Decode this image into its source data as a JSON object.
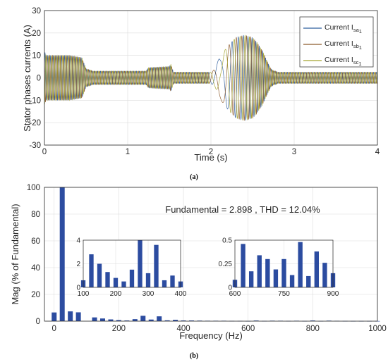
{
  "chart_data": [
    {
      "type": "line",
      "caption": "(a)",
      "xlabel": "Time (s)",
      "ylabel": "Stator phases currents (A)",
      "xlim": [
        0,
        4
      ],
      "ylim": [
        -30,
        30
      ],
      "xticks": [
        0,
        1,
        2,
        3,
        4
      ],
      "yticks": [
        -30,
        -20,
        -10,
        0,
        10,
        20,
        30
      ],
      "grid": true,
      "legend_position": "top-right",
      "envelope": {
        "t": [
          0,
          0.02,
          0.08,
          0.3,
          0.45,
          0.5,
          0.55,
          0.58,
          0.6,
          0.62,
          1.0,
          1.2,
          1.22,
          1.25,
          1.5,
          1.52,
          1.55,
          1.9,
          2.0,
          2.05,
          2.1,
          2.2,
          2.3,
          2.4,
          2.5,
          2.55,
          2.62,
          2.68,
          2.72,
          2.76,
          2.78,
          2.8,
          3.0,
          4.0
        ],
        "amp": [
          12,
          10,
          10,
          10,
          9,
          4,
          3.5,
          3,
          3,
          3,
          3,
          3,
          3,
          4.5,
          5,
          6,
          2.5,
          2.5,
          2.5,
          4,
          9,
          14,
          18,
          19,
          18,
          16,
          12,
          7,
          4,
          3,
          3,
          2.5,
          2.5,
          2.5
        ]
      },
      "series": [
        {
          "name": "Current I",
          "subscript": "sa",
          "sub2": "1",
          "color": "#2f5f9e",
          "phase_deg": 0
        },
        {
          "name": "Current I",
          "subscript": "sb",
          "sub2": "1",
          "color": "#8c5a2b",
          "phase_deg": 120
        },
        {
          "name": "Current I",
          "subscript": "sc",
          "sub2": "1",
          "color": "#a3a32e",
          "phase_deg": 240
        }
      ]
    },
    {
      "type": "bar",
      "caption": "(b)",
      "title": "Fundamental = 2.898 , THD = 12.04%",
      "xlabel": "Frequency (Hz)",
      "ylabel": "Mag (% of Fundamental)",
      "xlim": [
        -30,
        1000
      ],
      "ylim": [
        0,
        100
      ],
      "xticks": [
        0,
        200,
        400,
        600,
        800,
        1000
      ],
      "yticks": [
        0,
        20,
        40,
        60,
        80,
        100
      ],
      "grid": true,
      "bar_color": "#2c4ca0",
      "x": [
        0,
        25,
        50,
        75,
        125,
        150,
        175,
        200,
        225,
        250,
        275,
        300,
        325,
        350,
        375,
        400,
        425,
        450,
        475,
        500,
        525,
        550,
        575,
        600,
        625,
        650,
        675,
        700,
        725,
        750,
        775,
        800,
        825,
        850,
        875,
        900,
        925,
        950,
        975,
        1000
      ],
      "values": [
        6.5,
        100,
        7.3,
        6.6,
        2.8,
        2.0,
        1.3,
        0.8,
        0.5,
        1.5,
        4.0,
        1.2,
        3.6,
        0.6,
        1.0,
        0.5,
        0.5,
        0.4,
        0.3,
        0.3,
        0.3,
        0.2,
        0.2,
        0.08,
        0.46,
        0.17,
        0.34,
        0.3,
        0.19,
        0.3,
        0.13,
        0.48,
        0.12,
        0.38,
        0.26,
        0.15,
        0.1,
        0.1,
        0.1,
        0.1
      ],
      "insets": [
        {
          "xlim": [
            100,
            400
          ],
          "ylim": [
            0,
            4
          ],
          "xticks": [
            100,
            200,
            300,
            400
          ],
          "yticks": [
            0,
            2,
            4
          ],
          "x": [
            100,
            125,
            150,
            175,
            200,
            225,
            250,
            275,
            300,
            325,
            350,
            375,
            400
          ],
          "values": [
            0.6,
            2.8,
            2.0,
            1.3,
            0.8,
            0.5,
            1.5,
            4.0,
            1.2,
            3.6,
            0.6,
            1.0,
            0.5
          ]
        },
        {
          "xlim": [
            600,
            900
          ],
          "ylim": [
            0,
            0.5
          ],
          "xticks": [
            600,
            750,
            900
          ],
          "yticks": [
            0,
            0.25,
            0.5
          ],
          "xtick_labels": [
            "600",
            "750",
            "900"
          ],
          "ytick_labels": [
            "0",
            "0.25",
            "0.5"
          ],
          "x": [
            600,
            625,
            650,
            675,
            700,
            725,
            750,
            775,
            800,
            825,
            850,
            875,
            900
          ],
          "values": [
            0.08,
            0.46,
            0.17,
            0.34,
            0.3,
            0.19,
            0.3,
            0.13,
            0.48,
            0.12,
            0.38,
            0.26,
            0.15
          ]
        }
      ]
    }
  ]
}
